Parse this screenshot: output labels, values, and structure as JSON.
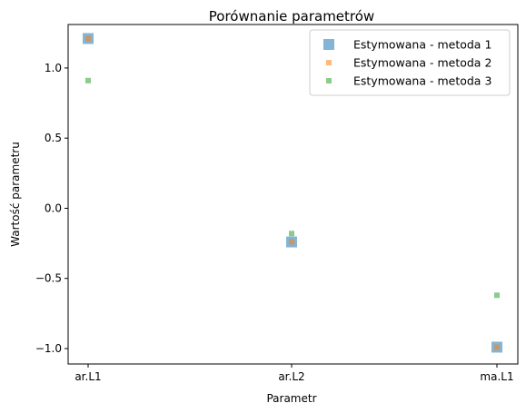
{
  "chart_data": {
    "type": "scatter",
    "title": "Porównanie parametrów",
    "xlabel": "Parametr",
    "ylabel": "Wartość parametru",
    "categories": [
      "ar.L1",
      "ar.L2",
      "ma.L1"
    ],
    "yticks": [
      1.0,
      0.5,
      0.0,
      -0.5,
      -1.0
    ],
    "ytick_labels": [
      "1.0",
      "0.5",
      "0.0",
      "−0.5",
      "−1.0"
    ],
    "ylim": [
      -1.11,
      1.31
    ],
    "grid": false,
    "legend_position": "top-right",
    "series": [
      {
        "name": "Estymowana - metoda 1",
        "marker": "square-large",
        "color": "#1f77b4",
        "values": [
          1.21,
          -0.24,
          -0.99
        ]
      },
      {
        "name": "Estymowana - metoda 2",
        "marker": "square-small",
        "color": "#ff7f0e",
        "values": [
          1.21,
          -0.24,
          -0.99
        ]
      },
      {
        "name": "Estymowana - metoda 3",
        "marker": "square-small",
        "color": "#2ca02c",
        "values": [
          0.91,
          -0.18,
          -0.62
        ]
      }
    ]
  }
}
